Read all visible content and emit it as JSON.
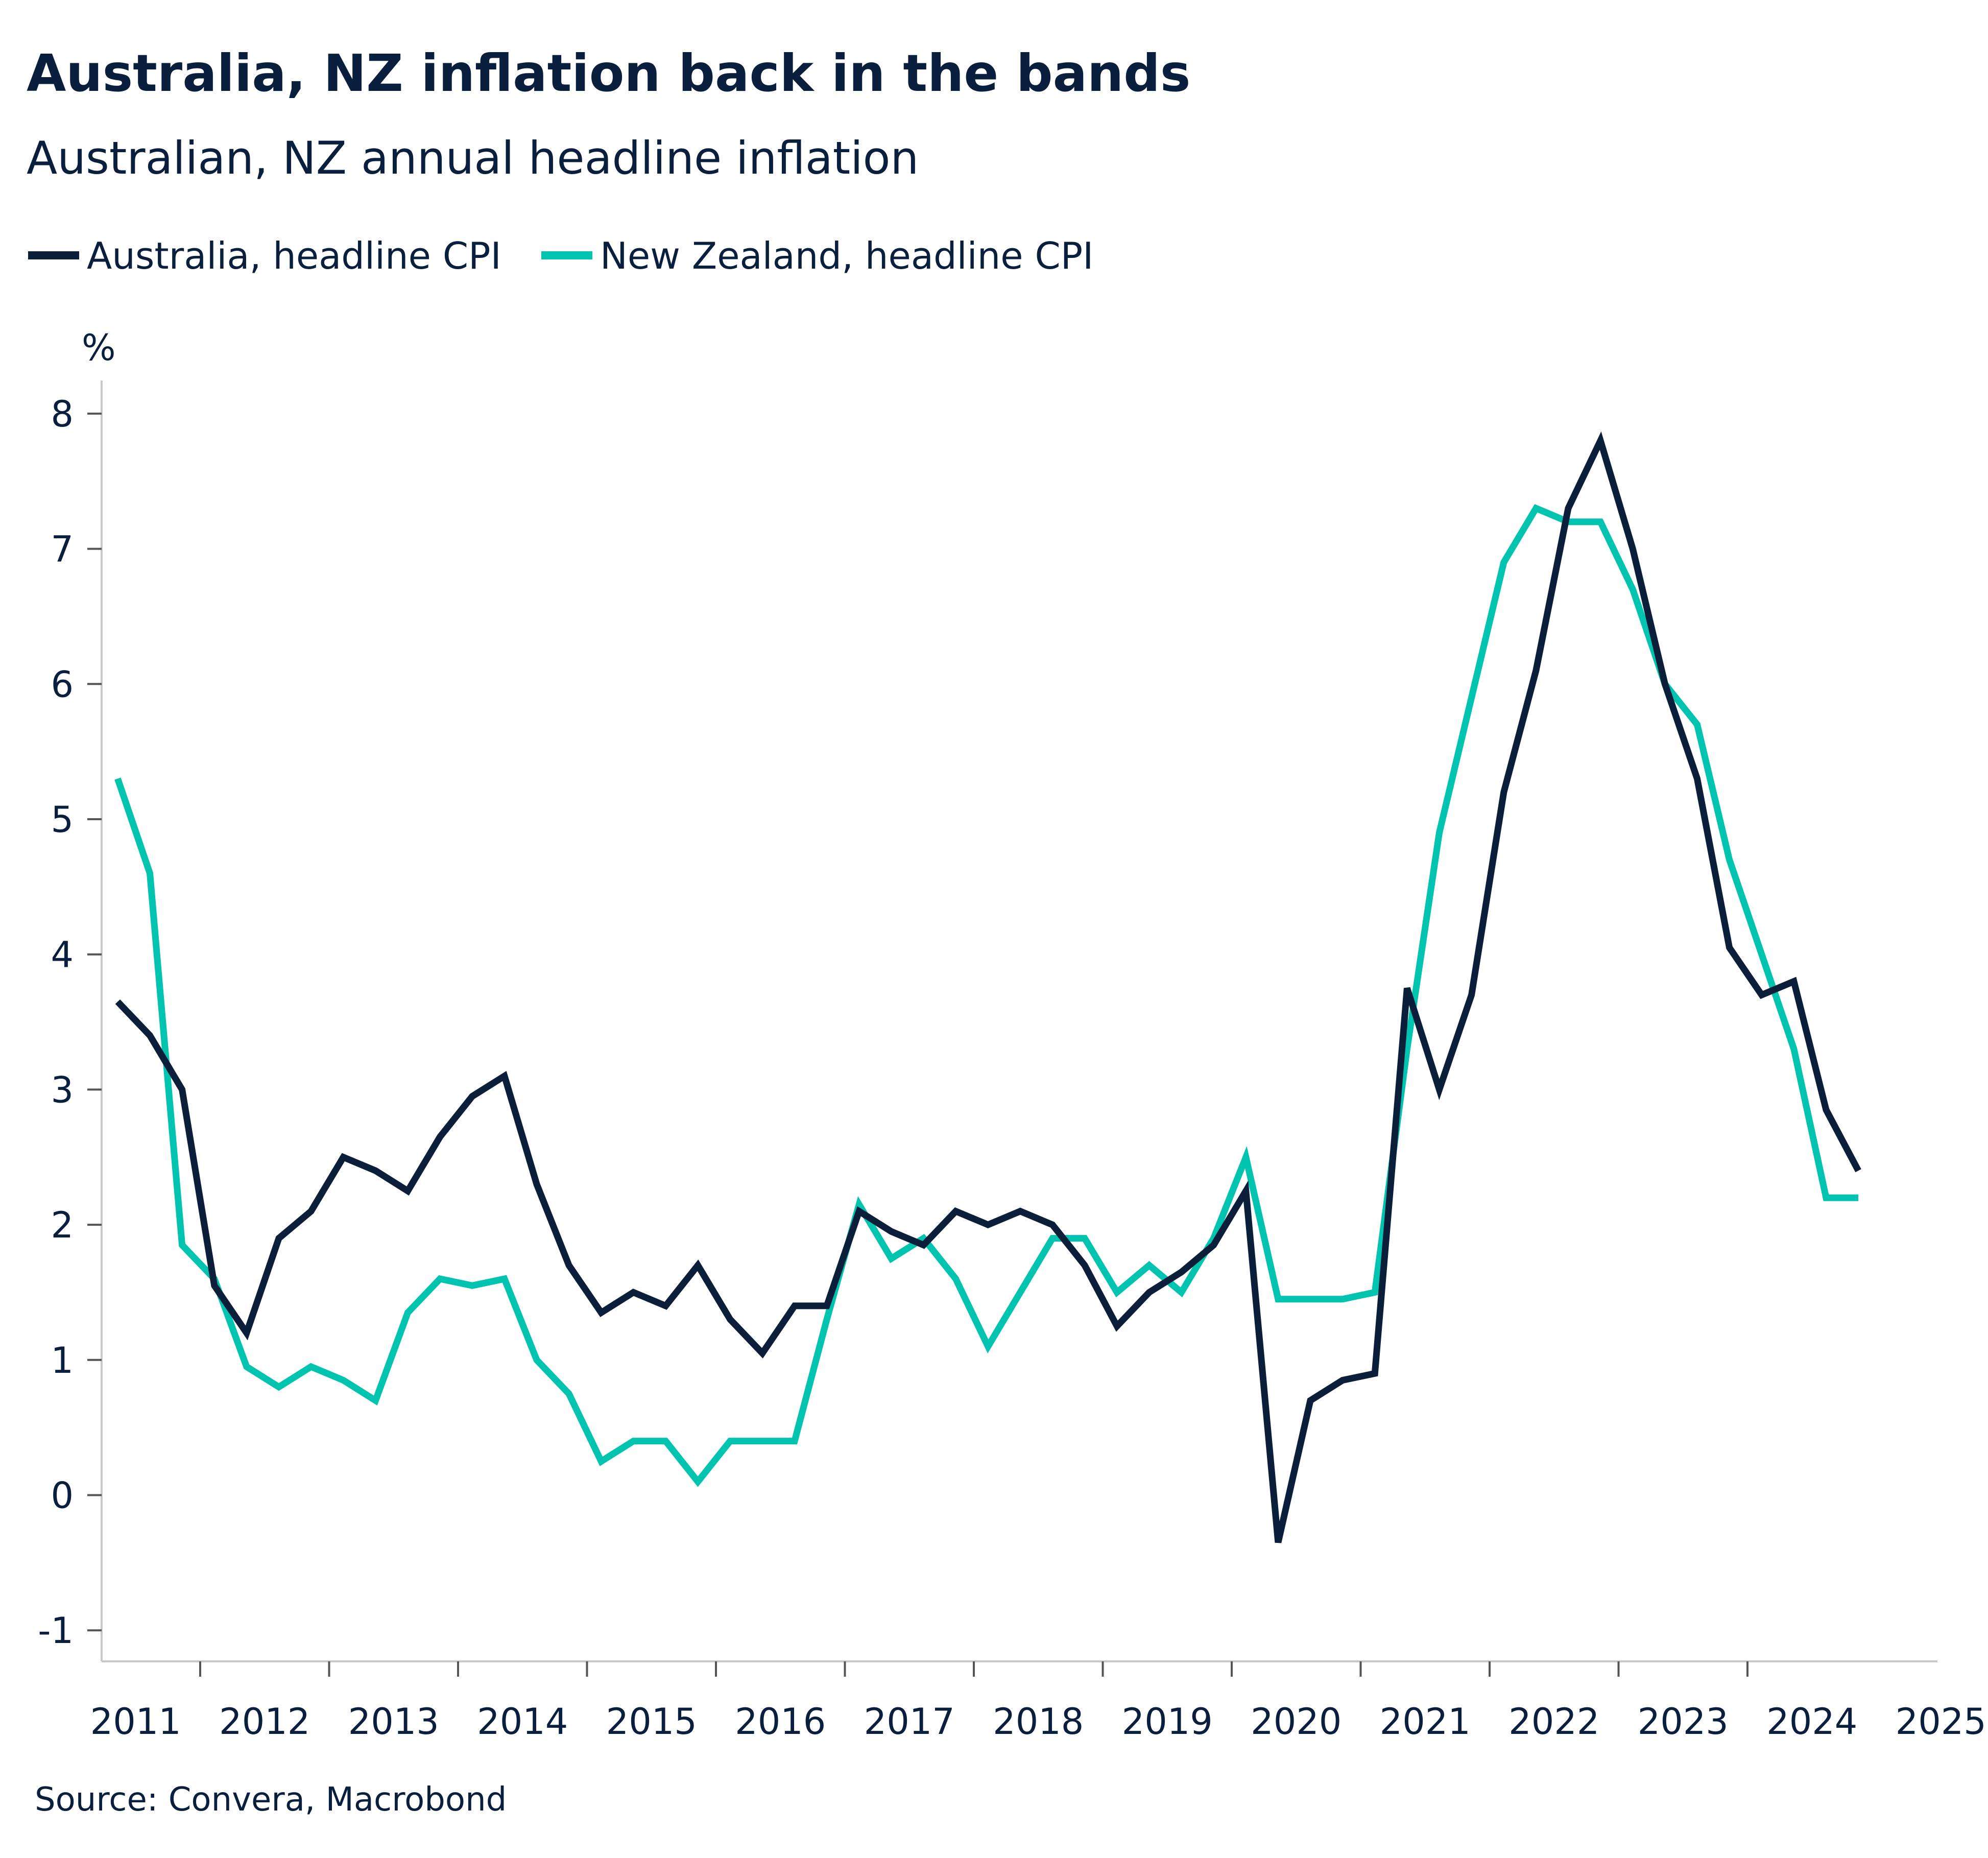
{
  "chart_data": {
    "type": "line",
    "title": "Australia, NZ inflation back in the bands",
    "subtitle": "Australian, NZ annual headline inflation",
    "ylabel": "%",
    "ylim": [
      -1.2,
      8.3
    ],
    "yticks": [
      "-1",
      "0",
      "1",
      "2",
      "3",
      "4",
      "5",
      "6",
      "7",
      "8"
    ],
    "xticks": [
      "2011",
      "2012",
      "2013",
      "2014",
      "2015",
      "2016",
      "2017",
      "2018",
      "2019",
      "2020",
      "2021",
      "2022",
      "2023",
      "2024",
      "2025"
    ],
    "x_start": "2011-Q1",
    "x_frequency": "quarterly",
    "legend_position": "top-left",
    "grid": false,
    "source": "Source: Convera, Macrobond",
    "series": [
      {
        "name": "Australia, headline CPI",
        "color": "#0b1f3a",
        "values": [
          3.65,
          3.4,
          3.0,
          1.55,
          1.2,
          1.9,
          2.1,
          2.5,
          2.4,
          2.25,
          2.65,
          2.95,
          3.1,
          2.3,
          1.7,
          1.35,
          1.5,
          1.4,
          1.7,
          1.3,
          1.05,
          1.4,
          1.4,
          2.1,
          1.95,
          1.85,
          2.1,
          2.0,
          2.1,
          2.0,
          1.7,
          1.25,
          1.5,
          1.65,
          1.85,
          2.25,
          -0.35,
          0.7,
          0.85,
          0.9,
          3.75,
          3.0,
          3.7,
          5.2,
          6.1,
          7.3,
          7.8,
          7.0,
          6.0,
          5.3,
          4.05,
          3.7,
          3.8,
          2.85,
          2.4
        ]
      },
      {
        "name": "New Zealand, headline CPI",
        "color": "#00c4b0",
        "values": [
          5.3,
          4.6,
          1.85,
          1.6,
          0.95,
          0.8,
          0.95,
          0.85,
          0.7,
          1.35,
          1.6,
          1.55,
          1.6,
          1.0,
          0.75,
          0.25,
          0.4,
          0.4,
          0.1,
          0.4,
          0.4,
          0.4,
          1.3,
          2.15,
          1.75,
          1.9,
          1.6,
          1.1,
          1.5,
          1.9,
          1.9,
          1.5,
          1.7,
          1.5,
          1.9,
          2.5,
          1.45,
          1.45,
          1.45,
          1.5,
          3.3,
          4.9,
          5.9,
          6.9,
          7.3,
          7.2,
          7.2,
          6.7,
          6.0,
          5.7,
          4.7,
          4.0,
          3.3,
          2.2,
          2.2
        ]
      }
    ]
  }
}
